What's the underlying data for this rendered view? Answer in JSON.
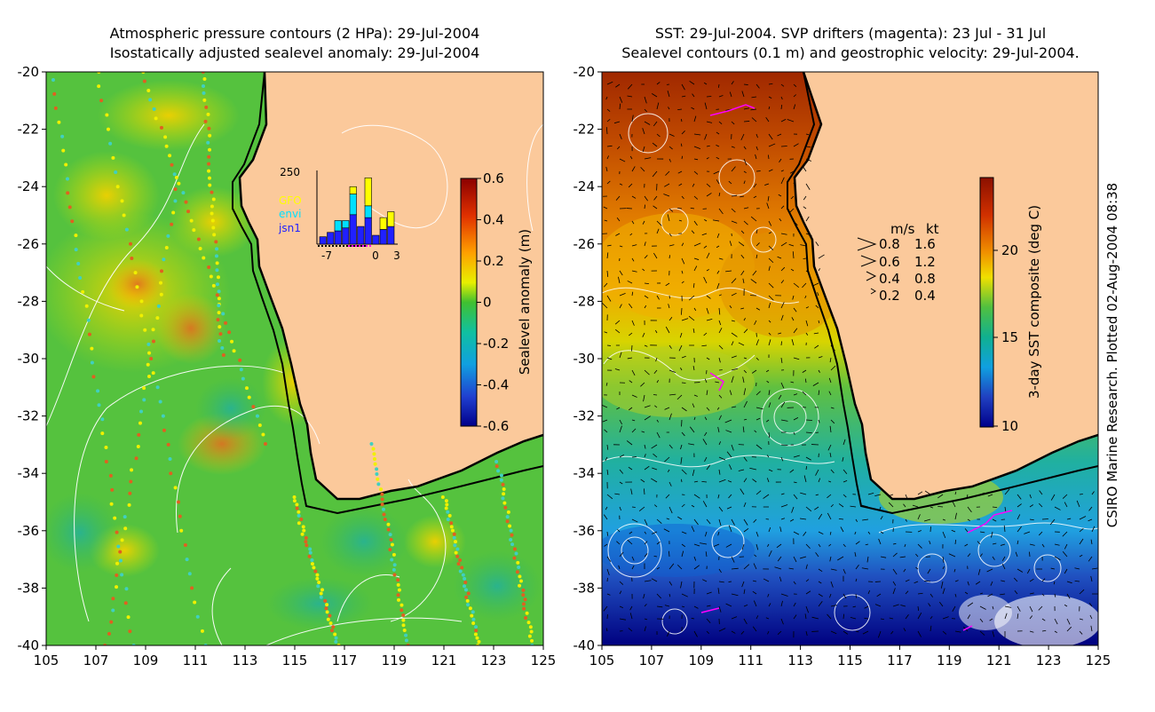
{
  "left_panel": {
    "title_line1": "Atmospheric pressure contours (2 HPa): 29-Jul-2004",
    "title_line2": "Isostatically adjusted sealevel anomaly: 29-Jul-2004",
    "y_ticks": [
      "-20",
      "-22",
      "-24",
      "-26",
      "-28",
      "-30",
      "-32",
      "-34",
      "-36",
      "-38",
      "-40"
    ],
    "x_ticks": [
      "105",
      "107",
      "109",
      "111",
      "113",
      "115",
      "117",
      "119",
      "121",
      "123",
      "125"
    ],
    "colorbar": {
      "label": "Sealevel anomaly (m)",
      "ticks": [
        "0.6",
        "0.4",
        "0.2",
        "0",
        "-0.2",
        "-0.4",
        "-0.6"
      ]
    },
    "inset": {
      "y_label": "250",
      "x_ticks": [
        "-7",
        "0",
        "3"
      ],
      "legend": [
        {
          "name": "GFO",
          "color": "#ffff00"
        },
        {
          "name": "envi",
          "color": "#00e0ff"
        },
        {
          "name": "jsn1",
          "color": "#2020ff"
        }
      ],
      "bars": [
        {
          "jsn1": 25,
          "envi": 0,
          "gfo": 0
        },
        {
          "jsn1": 40,
          "envi": 0,
          "gfo": 0
        },
        {
          "jsn1": 45,
          "envi": 35,
          "gfo": 0
        },
        {
          "jsn1": 55,
          "envi": 25,
          "gfo": 0
        },
        {
          "jsn1": 100,
          "envi": 70,
          "gfo": 25
        },
        {
          "jsn1": 60,
          "envi": 0,
          "gfo": 0
        },
        {
          "jsn1": 90,
          "envi": 40,
          "gfo": 95
        },
        {
          "jsn1": 30,
          "envi": 0,
          "gfo": 0
        },
        {
          "jsn1": 50,
          "envi": 0,
          "gfo": 40
        },
        {
          "jsn1": 60,
          "envi": 0,
          "gfo": 50
        }
      ]
    }
  },
  "right_panel": {
    "title_line1": "SST: 29-Jul-2004. SVP drifters (magenta): 23 Jul - 31 Jul",
    "title_line2": "Sealevel contours (0.1 m) and geostrophic velocity: 29-Jul-2004.",
    "y_ticks": [
      "-20",
      "-22",
      "-24",
      "-26",
      "-28",
      "-30",
      "-32",
      "-34",
      "-36",
      "-38",
      "-40"
    ],
    "x_ticks": [
      "105",
      "107",
      "109",
      "111",
      "113",
      "115",
      "117",
      "119",
      "121",
      "123",
      "125"
    ],
    "colorbar": {
      "label": "3-day SST composite (deg C)",
      "ticks": [
        "20",
        "15",
        "10"
      ]
    },
    "velocity_legend": {
      "header_ms": "m/s",
      "header_kt": "kt",
      "rows": [
        {
          "ms": "0.8",
          "kt": "1.6"
        },
        {
          "ms": "0.6",
          "kt": "1.2"
        },
        {
          "ms": "0.4",
          "kt": "0.8"
        },
        {
          "ms": "0.2",
          "kt": "0.4"
        }
      ]
    }
  },
  "credit": "CSIRO Marine Research. Plotted 02-Aug-2004 08:38",
  "colors": {
    "land": "#fbc99b",
    "ocean_green": "#4cc84a",
    "coast": "#000000"
  }
}
